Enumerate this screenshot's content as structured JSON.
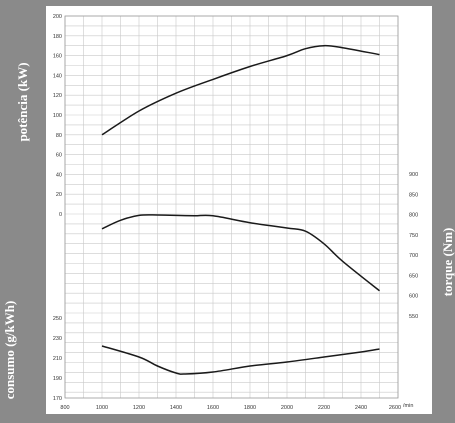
{
  "colors": {
    "background": "#8a8a8a",
    "panel": "#ffffff",
    "grid": "#c9c9c9",
    "curve": "#1a1a1a",
    "label": "#ffffff"
  },
  "chart_data": {
    "type": "line",
    "side_labels": {
      "power": "potência (kW)",
      "consumption": "consumo (g/kWh)",
      "torque": "torque (Nm)"
    },
    "x_unit": "/min",
    "x_ticks": [
      "800",
      "1000",
      "1200",
      "1400",
      "1600",
      "1800",
      "2000",
      "2200",
      "2400",
      "2600"
    ],
    "xlim": [
      800,
      2600
    ],
    "power_ticks": [
      "200",
      "180",
      "160",
      "140",
      "120",
      "100",
      "80",
      "60",
      "40",
      "20",
      "0"
    ],
    "power_ylim": [
      0,
      200
    ],
    "torque_ticks": [
      "900",
      "850",
      "800",
      "750",
      "700",
      "650",
      "600",
      "550"
    ],
    "torque_ylim": [
      550,
      900
    ],
    "consumption_ticks": [
      "250",
      "230",
      "210",
      "190",
      "170"
    ],
    "consumption_ylim": [
      170,
      260
    ],
    "series": [
      {
        "axis": "power",
        "x": [
          1000,
          1200,
          1400,
          1600,
          1800,
          2000,
          2100,
          2200,
          2300,
          2500
        ],
        "y": [
          80,
          104,
          122,
          136,
          149,
          160,
          167,
          170,
          168,
          161
        ]
      },
      {
        "axis": "torque",
        "x": [
          1000,
          1100,
          1200,
          1300,
          1400,
          1500,
          1600,
          1800,
          2000,
          2100,
          2200,
          2300,
          2500
        ],
        "y": [
          765,
          786,
          798,
          799,
          798,
          797,
          797,
          780,
          767,
          759,
          728,
          685,
          612
        ]
      },
      {
        "axis": "consumption",
        "x": [
          1000,
          1200,
          1300,
          1400,
          1450,
          1600,
          1800,
          2000,
          2200,
          2400,
          2500
        ],
        "y": [
          222,
          211,
          202,
          195,
          194,
          196,
          202,
          206,
          211,
          216,
          219
        ]
      }
    ]
  }
}
